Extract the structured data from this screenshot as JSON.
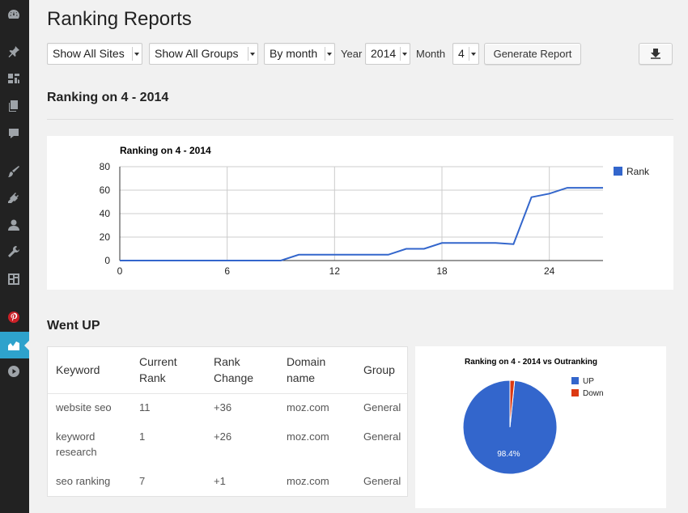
{
  "sidebar": {
    "icons": [
      "dashboard-icon",
      "pin-icon",
      "media-icon",
      "pages-icon",
      "comments-icon",
      "appearance-icon",
      "plugins-icon",
      "users-icon",
      "tools-icon",
      "settings-icon",
      "pinterest-icon",
      "ranking-icon",
      "play-icon"
    ],
    "active": "ranking-icon"
  },
  "page": {
    "title": "Ranking Reports"
  },
  "toolbar": {
    "sites_select": "Show All Sites",
    "groups_select": "Show All Groups",
    "period_select": "By month",
    "year_label": "Year",
    "year_select": "2014",
    "month_label": "Month",
    "month_select": "4",
    "generate_button": "Generate Report",
    "export_icon": "download-icon"
  },
  "ranking_section": {
    "title": "Ranking on 4 - 2014"
  },
  "went_up_section": {
    "title": "Went UP"
  },
  "table": {
    "headers": [
      {
        "line1": "Keyword",
        "line2": ""
      },
      {
        "line1": "Current",
        "line2": "Rank"
      },
      {
        "line1": "Rank",
        "line2": "Change"
      },
      {
        "line1": "Domain",
        "line2": "name"
      },
      {
        "line1": "Group",
        "line2": ""
      }
    ],
    "rows": [
      {
        "keyword": "website seo",
        "keyword2": "",
        "current_rank": "11",
        "rank_change": "+36",
        "domain": "moz.com",
        "group": "General"
      },
      {
        "keyword": "keyword",
        "keyword2": "research",
        "current_rank": "1",
        "rank_change": "+26",
        "domain": "moz.com",
        "group": "General"
      },
      {
        "keyword": "seo ranking",
        "keyword2": "",
        "current_rank": "7",
        "rank_change": "+1",
        "domain": "moz.com",
        "group": "General"
      }
    ]
  },
  "colors": {
    "series_blue": "#3366cc",
    "series_red": "#dc3912",
    "active_menu": "#2ea2cc"
  },
  "chart_data": [
    {
      "type": "line",
      "title": "Ranking on 4 - 2014",
      "xlim": [
        0,
        27
      ],
      "ylim": [
        0,
        80
      ],
      "x_ticks": [
        0,
        6,
        12,
        18,
        24
      ],
      "y_ticks": [
        0,
        20,
        40,
        60,
        80
      ],
      "grid": true,
      "legend": "right",
      "series": [
        {
          "name": "Rank",
          "x": [
            0,
            1,
            2,
            3,
            4,
            5,
            6,
            7,
            8,
            9,
            10,
            11,
            12,
            13,
            14,
            15,
            16,
            17,
            18,
            19,
            20,
            21,
            22,
            23,
            24,
            25,
            26,
            27
          ],
          "y": [
            0,
            0,
            0,
            0,
            0,
            0,
            0,
            0,
            0,
            0,
            5,
            5,
            5,
            5,
            5,
            5,
            10,
            10,
            15,
            15,
            15,
            15,
            14,
            54,
            57,
            62,
            62,
            62
          ]
        }
      ]
    },
    {
      "type": "pie",
      "title": "Ranking on 4 - 2014 vs Outranking",
      "legend": "right",
      "labels": [
        "UP",
        "Down"
      ],
      "values": [
        98.4,
        1.6
      ],
      "slice_labels": [
        "98.4%",
        ""
      ]
    }
  ]
}
